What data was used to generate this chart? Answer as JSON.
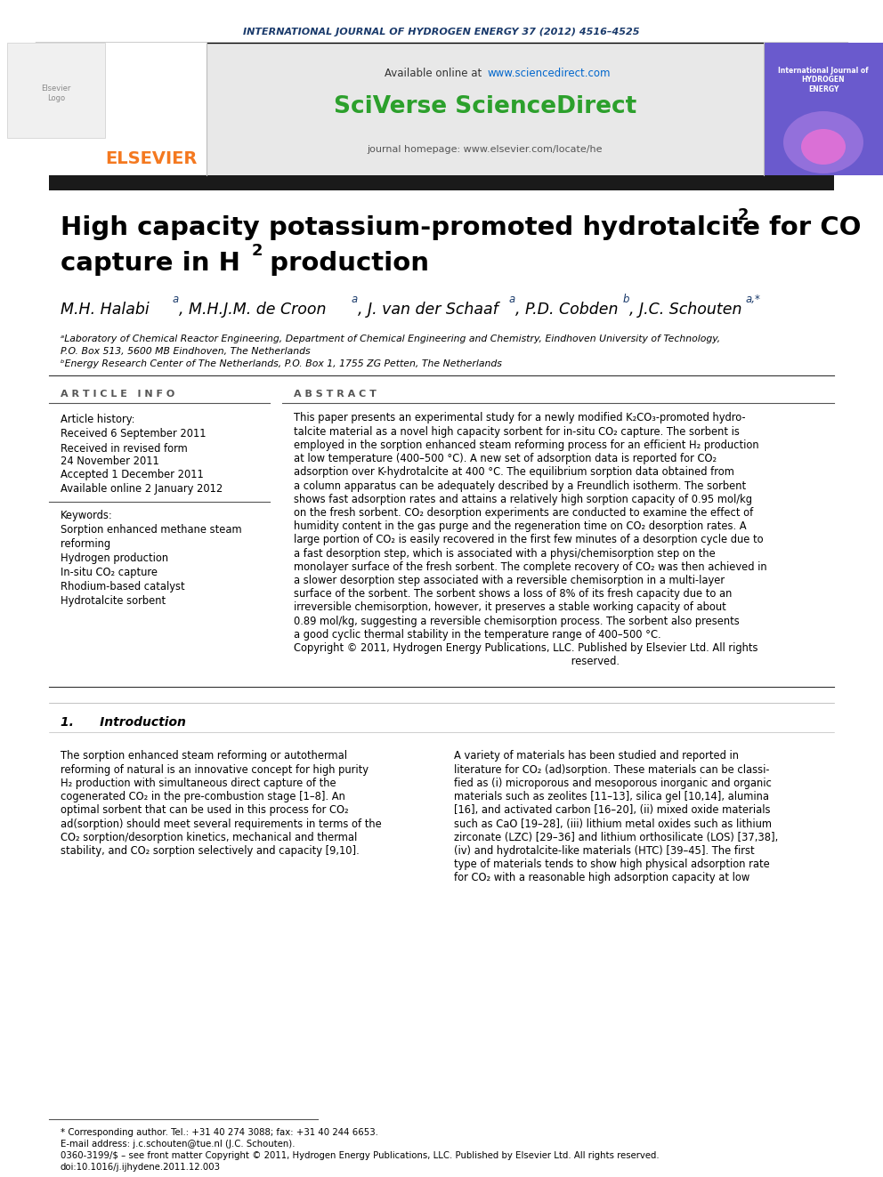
{
  "journal_header": "INTERNATIONAL JOURNAL OF HYDROGEN ENERGY 37 (2012) 4516–4525",
  "available_online": "Available online at ",
  "sciencedirect_url": "www.sciencedirect.com",
  "sciverse_text": "SciVerse ScienceDirect",
  "journal_homepage": "journal homepage: www.elsevier.com/locate/he",
  "elsevier_text": "ELSEVIER",
  "article_info_spaced": "A R T I C L E   I N F O",
  "abstract_spaced": "A B S T R A C T",
  "article_history_label": "Article history:",
  "received1": "Received 6 September 2011",
  "received2_line1": "Received in revised form",
  "received2_line2": "24 November 2011",
  "accepted": "Accepted 1 December 2011",
  "available": "Available online 2 January 2012",
  "keywords_label": "Keywords:",
  "keywords": [
    "Sorption enhanced methane steam",
    "reforming",
    "Hydrogen production",
    "In-situ CO₂ capture",
    "Rhodium-based catalyst",
    "Hydrotalcite sorbent"
  ],
  "footnote_star": "* Corresponding author. Tel.: +31 40 274 3088; fax: +31 40 244 6653.",
  "footnote_email": "E-mail address: j.c.schouten@tue.nl (J.C. Schouten).",
  "footnote_issn": "0360-3199/$ – see front matter Copyright © 2011, Hydrogen Energy Publications, LLC. Published by Elsevier Ltd. All rights reserved.",
  "footnote_doi": "doi:10.1016/j.ijhydene.2011.12.003",
  "bg_color": "#ffffff",
  "dark_bar_color": "#1a1a1a",
  "journal_header_color": "#1a3a6b",
  "elsevier_orange": "#f47920",
  "sciverse_green": "#2ca02c",
  "sciencedirect_blue": "#0066cc",
  "abstract_lines": [
    "This paper presents an experimental study for a newly modified K₂CO₃-promoted hydro-",
    "talcite material as a novel high capacity sorbent for in-situ CO₂ capture. The sorbent is",
    "employed in the sorption enhanced steam reforming process for an efficient H₂ production",
    "at low temperature (400–500 °C). A new set of adsorption data is reported for CO₂",
    "adsorption over K-hydrotalcite at 400 °C. The equilibrium sorption data obtained from",
    "a column apparatus can be adequately described by a Freundlich isotherm. The sorbent",
    "shows fast adsorption rates and attains a relatively high sorption capacity of 0.95 mol/kg",
    "on the fresh sorbent. CO₂ desorption experiments are conducted to examine the effect of",
    "humidity content in the gas purge and the regeneration time on CO₂ desorption rates. A",
    "large portion of CO₂ is easily recovered in the first few minutes of a desorption cycle due to",
    "a fast desorption step, which is associated with a physi/chemisorption step on the",
    "monolayer surface of the fresh sorbent. The complete recovery of CO₂ was then achieved in",
    "a slower desorption step associated with a reversible chemisorption in a multi-layer",
    "surface of the sorbent. The sorbent shows a loss of 8% of its fresh capacity due to an",
    "irreversible chemisorption, however, it preserves a stable working capacity of about",
    "0.89 mol/kg, suggesting a reversible chemisorption process. The sorbent also presents",
    "a good cyclic thermal stability in the temperature range of 400–500 °C.",
    "Copyright © 2011, Hydrogen Energy Publications, LLC. Published by Elsevier Ltd. All rights",
    "                                                                                      reserved."
  ],
  "intro_title": "1.      Introduction",
  "intro_left_lines": [
    "The sorption enhanced steam reforming or autothermal",
    "reforming of natural is an innovative concept for high purity",
    "H₂ production with simultaneous direct capture of the",
    "cogenerated CO₂ in the pre-combustion stage [1–8]. An",
    "optimal sorbent that can be used in this process for CO₂",
    "ad(sorption) should meet several requirements in terms of the",
    "CO₂ sorption/desorption kinetics, mechanical and thermal",
    "stability, and CO₂ sorption selectively and capacity [9,10]."
  ],
  "intro_right_lines": [
    "A variety of materials has been studied and reported in",
    "literature for CO₂ (ad)sorption. These materials can be classi-",
    "fied as (i) microporous and mesoporous inorganic and organic",
    "materials such as zeolites [11–13], silica gel [10,14], alumina",
    "[16], and activated carbon [16–20], (ii) mixed oxide materials",
    "such as CaO [19–28], (iii) lithium metal oxides such as lithium",
    "zirconate (LZC) [29–36] and lithium orthosilicate (LOS) [37,38],",
    "(iv) and hydrotalcite-like materials (HTC) [39–45]. The first",
    "type of materials tends to show high physical adsorption rate",
    "for CO₂ with a reasonable high adsorption capacity at low"
  ]
}
